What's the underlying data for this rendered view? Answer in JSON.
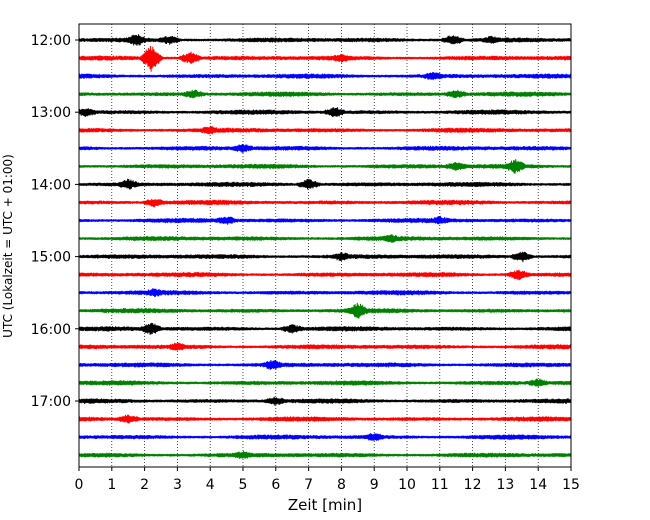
{
  "chart_data": {
    "type": "line",
    "title": "",
    "xlabel": "Zeit  [min]",
    "ylabel": "UTC (Lokalzeit = UTC + 01:00)",
    "xlim": [
      0,
      15
    ],
    "x_ticks": [
      "0",
      "1",
      "2",
      "3",
      "4",
      "5",
      "6",
      "7",
      "8",
      "9",
      "10",
      "11",
      "12",
      "13",
      "14",
      "15"
    ],
    "y_ticks": [
      "12:00",
      "13:00",
      "14:00",
      "15:00",
      "16:00",
      "17:00"
    ],
    "grid": "vertical dotted",
    "legend": "none",
    "trace_interval_minutes": 15,
    "trace_colors": [
      "#000000",
      "#ff0000",
      "#0000ff",
      "#008000"
    ],
    "traces": [
      {
        "start": "12:00",
        "color": "#000000",
        "events": [
          {
            "t": 1.75,
            "amp": 5
          },
          {
            "t": 2.75,
            "amp": 3
          },
          {
            "t": 11.4,
            "amp": 4
          },
          {
            "t": 12.6,
            "amp": 3
          }
        ]
      },
      {
        "start": "12:15",
        "color": "#ff0000",
        "events": [
          {
            "t": 2.2,
            "amp": 12
          },
          {
            "t": 3.4,
            "amp": 5
          },
          {
            "t": 8.0,
            "amp": 3
          }
        ]
      },
      {
        "start": "12:30",
        "color": "#0000ff",
        "events": [
          {
            "t": 10.8,
            "amp": 3
          }
        ]
      },
      {
        "start": "12:45",
        "color": "#008000",
        "events": [
          {
            "t": 3.5,
            "amp": 3
          },
          {
            "t": 11.5,
            "amp": 3
          }
        ]
      },
      {
        "start": "13:00",
        "color": "#000000",
        "events": [
          {
            "t": 7.8,
            "amp": 4
          },
          {
            "t": 0.2,
            "amp": 3
          }
        ]
      },
      {
        "start": "13:15",
        "color": "#ff0000",
        "events": [
          {
            "t": 4.0,
            "amp": 3
          }
        ]
      },
      {
        "start": "13:30",
        "color": "#0000ff",
        "events": [
          {
            "t": 5.0,
            "amp": 3
          }
        ]
      },
      {
        "start": "13:45",
        "color": "#008000",
        "events": [
          {
            "t": 13.3,
            "amp": 6
          },
          {
            "t": 11.5,
            "amp": 3
          }
        ]
      },
      {
        "start": "14:00",
        "color": "#000000",
        "events": [
          {
            "t": 1.5,
            "amp": 4
          },
          {
            "t": 7.0,
            "amp": 4
          }
        ]
      },
      {
        "start": "14:15",
        "color": "#ff0000",
        "events": [
          {
            "t": 2.3,
            "amp": 3
          }
        ]
      },
      {
        "start": "14:30",
        "color": "#0000ff",
        "events": [
          {
            "t": 4.5,
            "amp": 3
          },
          {
            "t": 11.0,
            "amp": 3
          }
        ]
      },
      {
        "start": "14:45",
        "color": "#008000",
        "events": [
          {
            "t": 9.5,
            "amp": 3
          }
        ]
      },
      {
        "start": "15:00",
        "color": "#000000",
        "events": [
          {
            "t": 13.5,
            "amp": 4
          },
          {
            "t": 8.0,
            "amp": 3
          }
        ]
      },
      {
        "start": "15:15",
        "color": "#ff0000",
        "events": [
          {
            "t": 13.4,
            "amp": 4
          }
        ]
      },
      {
        "start": "15:30",
        "color": "#0000ff",
        "events": [
          {
            "t": 2.3,
            "amp": 3
          }
        ]
      },
      {
        "start": "15:45",
        "color": "#008000",
        "events": [
          {
            "t": 8.5,
            "amp": 7
          }
        ]
      },
      {
        "start": "16:00",
        "color": "#000000",
        "events": [
          {
            "t": 2.2,
            "amp": 5
          },
          {
            "t": 6.5,
            "amp": 3
          }
        ]
      },
      {
        "start": "16:15",
        "color": "#ff0000",
        "events": [
          {
            "t": 3.0,
            "amp": 3
          }
        ]
      },
      {
        "start": "16:30",
        "color": "#0000ff",
        "events": [
          {
            "t": 5.9,
            "amp": 4
          }
        ]
      },
      {
        "start": "16:45",
        "color": "#008000",
        "events": [
          {
            "t": 14.0,
            "amp": 3
          }
        ]
      },
      {
        "start": "17:00",
        "color": "#000000",
        "events": [
          {
            "t": 6.0,
            "amp": 3
          }
        ]
      },
      {
        "start": "17:15",
        "color": "#ff0000",
        "events": [
          {
            "t": 1.5,
            "amp": 3
          }
        ]
      },
      {
        "start": "17:30",
        "color": "#0000ff",
        "events": [
          {
            "t": 9.0,
            "amp": 3
          }
        ]
      },
      {
        "start": "17:45",
        "color": "#008000",
        "events": [
          {
            "t": 5.0,
            "amp": 3
          }
        ]
      }
    ]
  }
}
